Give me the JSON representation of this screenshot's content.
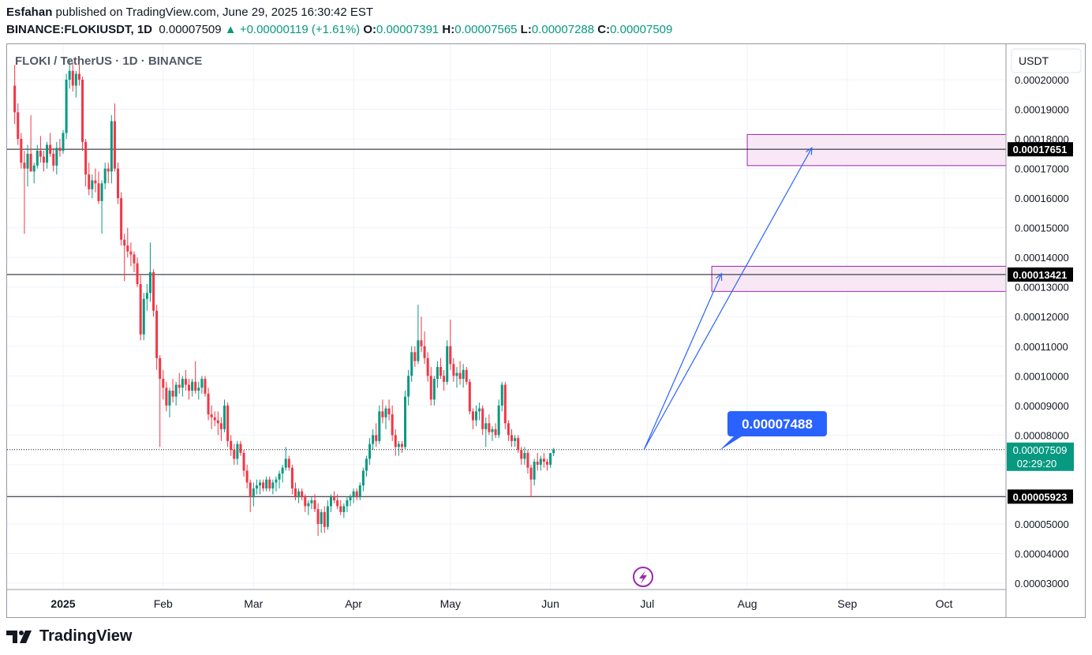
{
  "header": {
    "author": "Esfahan",
    "published_text": " published on TradingView.com, June 29, 2025 16:30:42 EST",
    "symbol": "BINANCE:FLOKIUSDT, 1D",
    "last": "0.00007509",
    "change": "+0.00000119 (+1.61%)",
    "open_label": "O:",
    "open": "0.00007391",
    "high_label": "H:",
    "high": "0.00007565",
    "low_label": "L:",
    "low": "0.00007288",
    "close_label": "C:",
    "close": "0.00007509"
  },
  "colors": {
    "up": "#089981",
    "down": "#f23645",
    "grid": "#f0f3fa",
    "arrow": "#2962ff",
    "zone_fill": "#f8e8f6",
    "zone_border": "#9c27b0",
    "label_bg": "#2962ff"
  },
  "footer": {
    "brand": "TradingView"
  },
  "chart_data": {
    "type": "candlestick",
    "title": "FLOKI / TetherUS · 1D · BINANCE",
    "currency": "USDT",
    "y_ticks": [
      "0.00003000",
      "0.00004000",
      "0.00005000",
      "0.00006000",
      "0.00007000",
      "0.00008000",
      "0.00009000",
      "0.00010000",
      "0.00011000",
      "0.00012000",
      "0.00013000",
      "0.00014000",
      "0.00015000",
      "0.00016000",
      "0.00017000",
      "0.00018000",
      "0.00019000",
      "0.00020000"
    ],
    "x_ticks": [
      "2025",
      "Feb",
      "Mar",
      "Apr",
      "May",
      "Jun",
      "Jul",
      "Aug",
      "Sep",
      "Oct"
    ],
    "horizontal_levels": [
      0.00017651,
      0.00013421,
      5.923e-05
    ],
    "level_labels": [
      "0.00017651",
      "0.00013421",
      "0.00005923"
    ],
    "last_price": 7.509e-05,
    "last_price_label": "0.00007509",
    "countdown": "02:29:20",
    "target_label": "0.00007488",
    "target_price": 7.488e-05,
    "zones": [
      {
        "from": "2025-07-21",
        "to": "2025-10-21",
        "low": 0.0001285,
        "high": 0.000137
      },
      {
        "from": "2025-08-01",
        "to": "2025-10-31",
        "low": 0.000171,
        "high": 0.0001815
      }
    ],
    "arrows": [
      {
        "from_date": "2025-06-30",
        "from_price": 7.51e-05,
        "to_date": "2025-07-24",
        "to_price": 0.0001345
      },
      {
        "from_date": "2025-06-30",
        "from_price": 7.51e-05,
        "to_date": "2025-08-21",
        "to_price": 0.000177
      }
    ],
    "start_date": "2024-12-17",
    "candles": [
      [
        0.000198,
        0.000205,
        0.000185,
        0.000189
      ],
      [
        0.000189,
        0.000192,
        0.000178,
        0.00018
      ],
      [
        0.00018,
        0.000182,
        0.00017,
        0.000172
      ],
      [
        0.000172,
        0.000176,
        0.000148,
        0.00017
      ],
      [
        0.00017,
        0.000178,
        0.000164,
        0.000175
      ],
      [
        0.000175,
        0.000188,
        0.000169,
        0.000169
      ],
      [
        0.000169,
        0.000172,
        0.000165,
        0.000171
      ],
      [
        0.000171,
        0.000178,
        0.00017,
        0.000176
      ],
      [
        0.000176,
        0.000181,
        0.000172,
        0.000174
      ],
      [
        0.000174,
        0.000176,
        0.000169,
        0.000172
      ],
      [
        0.000172,
        0.000179,
        0.00017,
        0.000178
      ],
      [
        0.000178,
        0.000182,
        0.000174,
        0.000175
      ],
      [
        0.000175,
        0.000177,
        0.000169,
        0.000171
      ],
      [
        0.000171,
        0.000179,
        0.000168,
        0.000177
      ],
      [
        0.000177,
        0.00018,
        0.000174,
        0.000176
      ],
      [
        0.000176,
        0.000183,
        0.000175,
        0.000182
      ],
      [
        0.000182,
        0.000202,
        0.00018,
        0.0002
      ],
      [
        0.0002,
        0.000207,
        0.000197,
        0.000203
      ],
      [
        0.000203,
        0.000206,
        0.000196,
        0.000198
      ],
      [
        0.000198,
        0.000203,
        0.000194,
        0.000202
      ],
      [
        0.000202,
        0.000205,
        0.000198,
        0.0002
      ],
      [
        0.0002,
        0.000201,
        0.000176,
        0.000179
      ],
      [
        0.000179,
        0.00018,
        0.000164,
        0.000168
      ],
      [
        0.000168,
        0.000172,
        0.000161,
        0.000163
      ],
      [
        0.000163,
        0.000168,
        0.00016,
        0.000166
      ],
      [
        0.000166,
        0.00017,
        0.000162,
        0.000165
      ],
      [
        0.000165,
        0.000169,
        0.000158,
        0.000159
      ],
      [
        0.000159,
        0.000166,
        0.000148,
        0.000165
      ],
      [
        0.000165,
        0.000172,
        0.000163,
        0.00017
      ],
      [
        0.00017,
        0.000172,
        0.000165,
        0.000169
      ],
      [
        0.000169,
        0.000188,
        0.000165,
        0.000186
      ],
      [
        0.000186,
        0.000192,
        0.000169,
        0.00017
      ],
      [
        0.00017,
        0.000172,
        0.000158,
        0.00016
      ],
      [
        0.00016,
        0.000162,
        0.000144,
        0.000146
      ],
      [
        0.000146,
        0.000148,
        0.000132,
        0.000144
      ],
      [
        0.000144,
        0.00015,
        0.00014,
        0.000142
      ],
      [
        0.000142,
        0.000145,
        0.000137,
        0.000141
      ],
      [
        0.000141,
        0.000142,
        0.000135,
        0.000138
      ],
      [
        0.000138,
        0.00014,
        0.00013,
        0.000131
      ],
      [
        0.000131,
        0.000134,
        0.000112,
        0.000114
      ],
      [
        0.000114,
        0.000128,
        0.000112,
        0.000126
      ],
      [
        0.000126,
        0.000131,
        0.000122,
        0.000128
      ],
      [
        0.000128,
        0.000145,
        0.000125,
        0.000135
      ],
      [
        0.000135,
        0.000136,
        0.00012,
        0.000122
      ],
      [
        0.000122,
        0.000124,
        0.000102,
        0.000106
      ],
      [
        0.000106,
        0.000107,
        7.6e-05,
        9.9e-05
      ],
      [
        9.9e-05,
        0.000102,
        9.2e-05,
        9.6e-05
      ],
      [
        9.6e-05,
        9.8e-05,
        8.8e-05,
        9e-05
      ],
      [
        9e-05,
        9.6e-05,
        8.6e-05,
        9.5e-05
      ],
      [
        9.5e-05,
        9.9e-05,
        9.1e-05,
        9.3e-05
      ],
      [
        9.3e-05,
        9.8e-05,
        9e-05,
        9.7e-05
      ],
      [
        9.7e-05,
        0.000101,
        9.4e-05,
        9.6e-05
      ],
      [
        9.6e-05,
        0.0001,
        9.3e-05,
        9.9e-05
      ],
      [
        9.9e-05,
        0.000102,
        9.5e-05,
        9.7e-05
      ],
      [
        9.7e-05,
        9.9e-05,
        9.2e-05,
        9.5e-05
      ],
      [
        9.5e-05,
        9.9e-05,
        9.3e-05,
        9.8e-05
      ],
      [
        9.8e-05,
        0.000105,
        9.4e-05,
        9.5e-05
      ],
      [
        9.5e-05,
        9.8e-05,
        9.2e-05,
        9.6e-05
      ],
      [
        9.6e-05,
        0.0001,
        9.4e-05,
        9.9e-05
      ],
      [
        9.9e-05,
        0.0001,
        9.3e-05,
        9.4e-05
      ],
      [
        9.4e-05,
        9.6e-05,
        8.5e-05,
        8.7e-05
      ],
      [
        8.7e-05,
        9e-05,
        8.2e-05,
        8.6e-05
      ],
      [
        8.6e-05,
        8.8e-05,
        8.3e-05,
        8.5e-05
      ],
      [
        8.5e-05,
        8.8e-05,
        8e-05,
        8.4e-05
      ],
      [
        8.4e-05,
        8.6e-05,
        7.8e-05,
        8.2e-05
      ],
      [
        8.2e-05,
        9.2e-05,
        8.1e-05,
        9e-05
      ],
      [
        9e-05,
        9.1e-05,
        7.6e-05,
        7.8e-05
      ],
      [
        7.8e-05,
        8e-05,
        7.3e-05,
        7.5e-05
      ],
      [
        7.5e-05,
        7.7e-05,
        7e-05,
        7.2e-05
      ],
      [
        7.2e-05,
        7.8e-05,
        7e-05,
        7.7e-05
      ],
      [
        7.7e-05,
        7.8e-05,
        7.3e-05,
        7.4e-05
      ],
      [
        7.4e-05,
        7.5e-05,
        6.6e-05,
        6.8e-05
      ],
      [
        6.8e-05,
        7e-05,
        6.2e-05,
        6.4e-05
      ],
      [
        6.4e-05,
        6.5e-05,
        5.4e-05,
        5.9e-05
      ],
      [
        5.9e-05,
        6.4e-05,
        5.6e-05,
        6.2e-05
      ],
      [
        6.2e-05,
        6.5e-05,
        6e-05,
        6.3e-05
      ],
      [
        6.3e-05,
        6.5e-05,
        6e-05,
        6.4e-05
      ],
      [
        6.4e-05,
        6.5e-05,
        6.1e-05,
        6.2e-05
      ],
      [
        6.2e-05,
        6.6e-05,
        6.1e-05,
        6.5e-05
      ],
      [
        6.5e-05,
        6.6e-05,
        6.1e-05,
        6.2e-05
      ],
      [
        6.2e-05,
        6.5e-05,
        6e-05,
        6.4e-05
      ],
      [
        6.4e-05,
        6.6e-05,
        6.1e-05,
        6.5e-05
      ],
      [
        6.5e-05,
        6.8e-05,
        6.2e-05,
        6.7e-05
      ],
      [
        6.7e-05,
        7e-05,
        6.4e-05,
        6.9e-05
      ],
      [
        6.9e-05,
        7.6e-05,
        6.8e-05,
        7.2e-05
      ],
      [
        7.2e-05,
        7.3e-05,
        6.8e-05,
        6.9e-05
      ],
      [
        6.9e-05,
        7e-05,
        6e-05,
        6.2e-05
      ],
      [
        6.2e-05,
        6.4e-05,
        5.8e-05,
        5.9e-05
      ],
      [
        5.9e-05,
        6.2e-05,
        5.7e-05,
        6.1e-05
      ],
      [
        6.1e-05,
        6.2e-05,
        5.8e-05,
        5.9e-05
      ],
      [
        5.9e-05,
        6e-05,
        5.4e-05,
        5.6e-05
      ],
      [
        5.6e-05,
        5.8e-05,
        5.3e-05,
        5.7e-05
      ],
      [
        5.7e-05,
        5.9e-05,
        5.5e-05,
        5.8e-05
      ],
      [
        5.8e-05,
        6e-05,
        5.4e-05,
        5.5e-05
      ],
      [
        5.5e-05,
        5.7e-05,
        4.6e-05,
        5e-05
      ],
      [
        5e-05,
        5.5e-05,
        4.7e-05,
        5.4e-05
      ],
      [
        5.4e-05,
        5.6e-05,
        4.7e-05,
        4.9e-05
      ],
      [
        4.9e-05,
        5.8e-05,
        4.8e-05,
        5.6e-05
      ],
      [
        5.6e-05,
        6e-05,
        5.4e-05,
        5.9e-05
      ],
      [
        5.9e-05,
        6.1e-05,
        5.7e-05,
        5.8e-05
      ],
      [
        5.8e-05,
        6e-05,
        5.5e-05,
        5.6e-05
      ],
      [
        5.6e-05,
        5.8e-05,
        5.3e-05,
        5.4e-05
      ],
      [
        5.4e-05,
        5.7e-05,
        5.2e-05,
        5.6e-05
      ],
      [
        5.6e-05,
        5.9e-05,
        5.4e-05,
        5.8e-05
      ],
      [
        5.8e-05,
        6e-05,
        5.6e-05,
        5.9e-05
      ],
      [
        5.9e-05,
        6.2e-05,
        5.7e-05,
        6.1e-05
      ],
      [
        6.1e-05,
        6.2e-05,
        5.8e-05,
        5.9e-05
      ],
      [
        5.9e-05,
        6.4e-05,
        5.8e-05,
        6.3e-05
      ],
      [
        6.3e-05,
        6.9e-05,
        6.1e-05,
        6.8e-05
      ],
      [
        6.8e-05,
        7.3e-05,
        6.6e-05,
        7.2e-05
      ],
      [
        7.2e-05,
        7.9e-05,
        7e-05,
        7.7e-05
      ],
      [
        7.7e-05,
        8.2e-05,
        7.5e-05,
        8e-05
      ],
      [
        8e-05,
        8.4e-05,
        7.6e-05,
        7.8e-05
      ],
      [
        7.8e-05,
        9e-05,
        7.7e-05,
        8.8e-05
      ],
      [
        8.8e-05,
        9.2e-05,
        8.4e-05,
        8.6e-05
      ],
      [
        8.6e-05,
        9e-05,
        8.2e-05,
        8.9e-05
      ],
      [
        8.9e-05,
        9.2e-05,
        8.5e-05,
        8.7e-05
      ],
      [
        8.7e-05,
        9e-05,
        7.8e-05,
        8e-05
      ],
      [
        8e-05,
        8.2e-05,
        7.3e-05,
        7.6e-05
      ],
      [
        7.6e-05,
        7.8e-05,
        7.3e-05,
        7.7e-05
      ],
      [
        7.7e-05,
        7.8e-05,
        7.4e-05,
        7.6e-05
      ],
      [
        7.6e-05,
        9.5e-05,
        7.5e-05,
        9.3e-05
      ],
      [
        9.3e-05,
        0.000102,
        9e-05,
        0.0001
      ],
      [
        0.0001,
        0.00011,
        9.8e-05,
        0.000108
      ],
      [
        0.000108,
        0.00011,
        0.000103,
        0.000105
      ],
      [
        0.000105,
        0.000124,
        0.000104,
        0.000112
      ],
      [
        0.000112,
        0.00012,
        0.000108,
        0.00011
      ],
      [
        0.00011,
        0.000115,
        0.000104,
        0.000106
      ],
      [
        0.000106,
        0.000108,
        9.8e-05,
        0.0001
      ],
      [
        0.0001,
        0.000103,
        9e-05,
        9.2e-05
      ],
      [
        9.2e-05,
        0.0001,
        9e-05,
        9.9e-05
      ],
      [
        9.9e-05,
        0.000105,
        9.6e-05,
        0.000103
      ],
      [
        0.000103,
        0.000106,
        9.9e-05,
        0.0001
      ],
      [
        0.0001,
        0.000102,
        9.5e-05,
        9.8e-05
      ],
      [
        9.8e-05,
        0.000112,
        9.7e-05,
        0.00011
      ],
      [
        0.00011,
        0.000119,
        0.000102,
        0.000104
      ],
      [
        0.000104,
        0.000106,
        9.8e-05,
        0.0001
      ],
      [
        0.0001,
        0.000103,
        9.6e-05,
        0.000101
      ],
      [
        0.000101,
        0.000105,
        9.7e-05,
        9.9e-05
      ],
      [
        9.9e-05,
        0.000104,
        9.6e-05,
        0.000102
      ],
      [
        0.000102,
        0.000103,
        9.7e-05,
        9.8e-05
      ],
      [
        9.8e-05,
        9.9e-05,
        8.7e-05,
        8.8e-05
      ],
      [
        8.8e-05,
        8.9e-05,
        8.2e-05,
        8.5e-05
      ],
      [
        8.5e-05,
        9e-05,
        8.3e-05,
        8.8e-05
      ],
      [
        8.8e-05,
        9.1e-05,
        8.5e-05,
        8.9e-05
      ],
      [
        8.9e-05,
        9e-05,
        8e-05,
        8.2e-05
      ],
      [
        8.2e-05,
        8.6e-05,
        7.6e-05,
        8.4e-05
      ],
      [
        8.4e-05,
        8.7e-05,
        8e-05,
        8.1e-05
      ],
      [
        8.1e-05,
        8.3e-05,
        7.8e-05,
        8.2e-05
      ],
      [
        8.2e-05,
        8.4e-05,
        7.9e-05,
        8e-05
      ],
      [
        8e-05,
        9.2e-05,
        7.9e-05,
        9e-05
      ],
      [
        9e-05,
        9.8e-05,
        8.8e-05,
        9.7e-05
      ],
      [
        9.7e-05,
        9.8e-05,
        8.2e-05,
        8.4e-05
      ],
      [
        8.4e-05,
        8.5e-05,
        7.8e-05,
        8e-05
      ],
      [
        8e-05,
        8.2e-05,
        7.6e-05,
        7.8e-05
      ],
      [
        7.8e-05,
        8e-05,
        7.6e-05,
        7.9e-05
      ],
      [
        7.9e-05,
        8e-05,
        7.4e-05,
        7.5e-05
      ],
      [
        7.5e-05,
        7.6e-05,
        7e-05,
        7.2e-05
      ],
      [
        7.2e-05,
        7.6e-05,
        7e-05,
        7.4e-05
      ],
      [
        7.4e-05,
        7.5e-05,
        6.7e-05,
        6.9e-05
      ],
      [
        6.9e-05,
        7e-05,
        5.9e-05,
        6.5e-05
      ],
      [
        6.5e-05,
        7.2e-05,
        6.3e-05,
        7.1e-05
      ],
      [
        7.1e-05,
        7.4e-05,
        6.8e-05,
        7e-05
      ],
      [
        7e-05,
        7.3e-05,
        6.8e-05,
        7.2e-05
      ],
      [
        7.2e-05,
        7.4e-05,
        6.9e-05,
        7.1e-05
      ],
      [
        7.1e-05,
        7.2e-05,
        6.8e-05,
        7e-05
      ],
      [
        7e-05,
        7.4e-05,
        6.9e-05,
        7.39e-05
      ],
      [
        7.39e-05,
        7.57e-05,
        7.29e-05,
        7.51e-05
      ]
    ]
  }
}
